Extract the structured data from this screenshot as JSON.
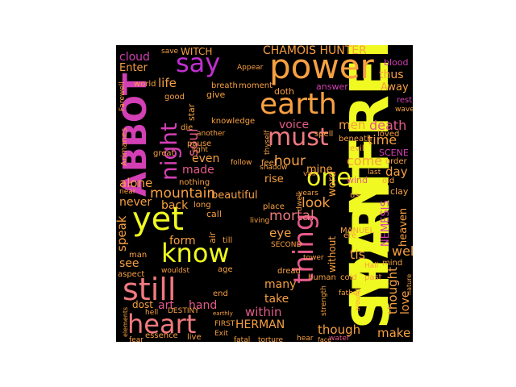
{
  "palette": {
    "background": "#000000",
    "yellow": "#f0f921",
    "orange": "#f8a041",
    "salmon": "#f07a7f",
    "pink": "#e55a8a",
    "magenta": "#d33fb5",
    "violet": "#c02fd0"
  },
  "words": {
    "manfred": "MANFRED",
    "spirit": "SPIRIT",
    "abbot": "ABBOT",
    "power": "power",
    "earth": "earth",
    "yet": "yet",
    "still": "still",
    "heart": "heart",
    "know": "know",
    "thing": "thing",
    "must": "must",
    "one": "one",
    "say": "say",
    "night": "night",
    "chamois_hunter": "CHAMOIS HUNTER",
    "herman": "HERMAN",
    "hour": "hour",
    "mortal": "mortal",
    "look": "look",
    "come": "come",
    "time": "time",
    "death": "death",
    "men": "men",
    "voice": "voice",
    "soul": "soul",
    "mountain": "mountain",
    "alone": "alone",
    "made": "made",
    "even": "even",
    "never": "never",
    "back": "back",
    "speak": "speak",
    "form": "form",
    "see": "see",
    "art": "art",
    "hand": "hand",
    "within": "within",
    "many": "many",
    "take": "take",
    "eye": "eye",
    "tis": "tis",
    "well": "well",
    "though": "though",
    "make": "make",
    "thought": "thought",
    "love": "love",
    "nemesis": "NEMESIS",
    "heaven": "heaven",
    "day": "day",
    "thus": "thus",
    "away": "Away",
    "life": "life",
    "cloud": "cloud",
    "enter": "Enter",
    "witch": "WITCH",
    "answer": "answer",
    "doth": "doth",
    "beautiful": "beautiful",
    "rise": "rise",
    "mine": "mine",
    "dost": "dost",
    "without": "without",
    "word": "word",
    "star": "star",
    "give": "give",
    "good": "good",
    "world": "world",
    "farewell": "Farewell",
    "arimanes": "Arimanes",
    "save": "save",
    "blood": "blood",
    "rest": "rest",
    "wave": "wave",
    "scene": "SCENE",
    "order": "order",
    "loved": "loved",
    "evil": "evil",
    "beneath": "beneath",
    "clay": "clay",
    "wind": "wind",
    "old": "old",
    "last": "last",
    "feel": "feel",
    "shadow": "shadow",
    "vain": "vain",
    "years": "years",
    "place": "place",
    "living": "living",
    "second": "SECOND",
    "manuel": "MANUEL",
    "dread": "dread",
    "human": "human",
    "cold": "cold",
    "past": "past",
    "hall": "Hall",
    "mind": "mind",
    "nature": "nature",
    "father": "father",
    "strength": "strength",
    "around": "around",
    "tower": "tower",
    "spell": "spell",
    "ere": "ere",
    "us": "us",
    "dwell": "dwell",
    "call": "call",
    "air": "air",
    "till": "till",
    "age": "age",
    "end": "end",
    "first": "FIRST",
    "exit": "Exit",
    "fatal": "fatal",
    "torture": "torture",
    "hear": "hear",
    "face": "face",
    "water": "water",
    "fear": "fear",
    "essence": "essence",
    "live": "live",
    "destiny": "DESTINY",
    "hell": "hell",
    "aspect": "aspect",
    "man": "man",
    "wouldst": "wouldst",
    "near": "near",
    "great": "great",
    "light": "light",
    "die": "die",
    "pause": "pause",
    "another": "another",
    "nothing": "nothing",
    "long": "long",
    "knowledge": "knowledge",
    "breath": "breath",
    "moment": "moment",
    "appear": "Appear",
    "thyself": "thyself",
    "follow": "follow",
    "elements": "elements",
    "earthly": "earthly"
  }
}
